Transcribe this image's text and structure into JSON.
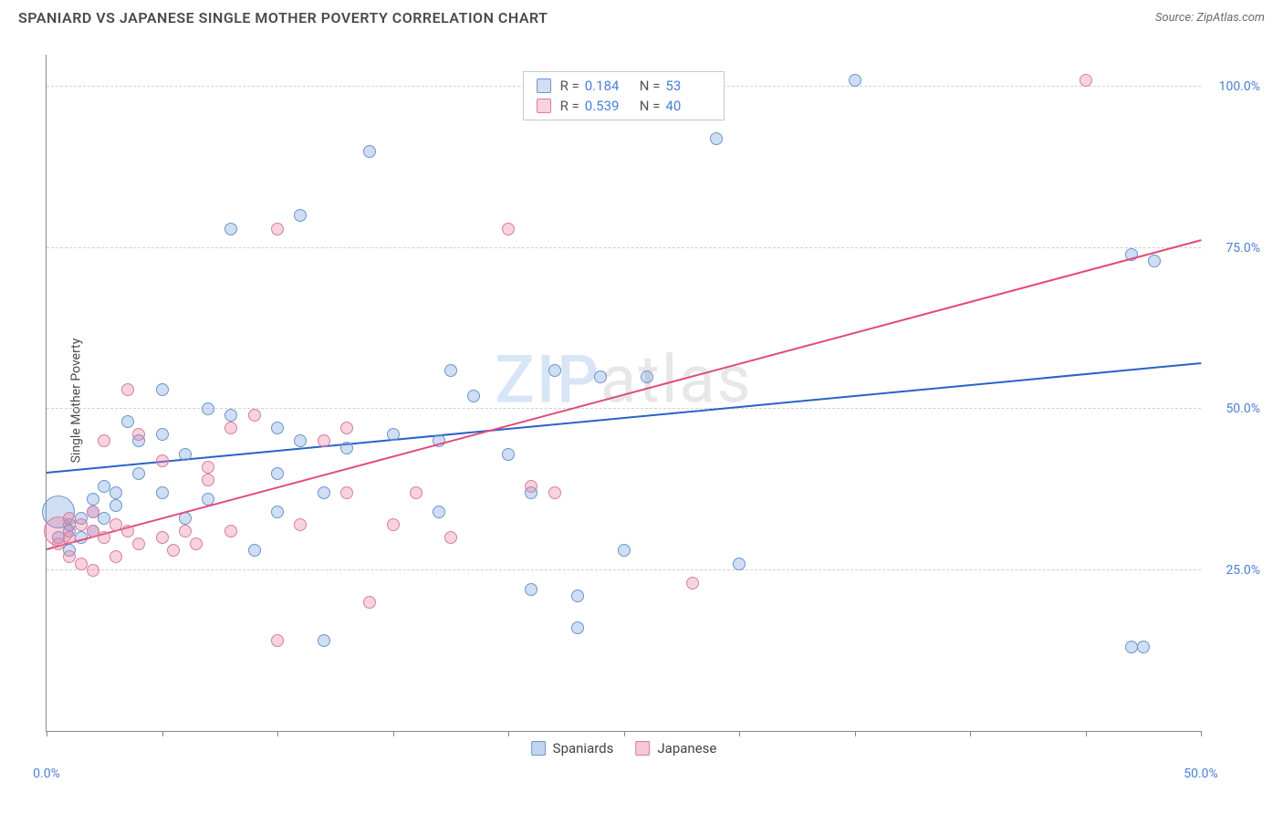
{
  "title": "SPANIARD VS JAPANESE SINGLE MOTHER POVERTY CORRELATION CHART",
  "source_label": "Source: ZipAtlas.com",
  "ylabel": "Single Mother Poverty",
  "watermark": {
    "part1": "ZIP",
    "part2": "atlas"
  },
  "chart": {
    "type": "scatter",
    "xlim": [
      0,
      50
    ],
    "ylim": [
      0,
      105
    ],
    "xtick_positions": [
      0,
      5,
      10,
      15,
      20,
      25,
      30,
      35,
      40,
      45,
      50
    ],
    "xtick_labels": {
      "0": "0.0%",
      "50": "50.0%"
    },
    "ytick_positions": [
      25,
      50,
      75,
      100
    ],
    "ytick_labels": [
      "25.0%",
      "50.0%",
      "75.0%",
      "100.0%"
    ],
    "grid_color": "#d0d0d0",
    "axis_color": "#888888",
    "background_color": "#ffffff",
    "marker_radius": 7,
    "marker_stroke_width": 1.2,
    "series": [
      {
        "name": "Spaniards",
        "fill": "rgba(120,160,220,0.35)",
        "stroke": "#6a95d0",
        "r_value": "0.184",
        "n_value": "53",
        "trend": {
          "x1": 0,
          "y1": 40,
          "x2": 50,
          "y2": 57,
          "color": "#2a62c8",
          "width": 2
        },
        "points": [
          [
            0.5,
            30
          ],
          [
            0.5,
            34,
            18
          ],
          [
            1,
            28
          ],
          [
            1,
            31
          ],
          [
            1,
            32
          ],
          [
            1.5,
            30
          ],
          [
            1.5,
            33
          ],
          [
            2,
            31
          ],
          [
            2,
            34
          ],
          [
            2,
            36
          ],
          [
            2.5,
            33
          ],
          [
            2.5,
            38
          ],
          [
            3,
            35
          ],
          [
            3,
            37
          ],
          [
            3.5,
            48
          ],
          [
            4,
            40
          ],
          [
            4,
            45
          ],
          [
            5,
            37
          ],
          [
            5,
            46
          ],
          [
            5,
            53
          ],
          [
            6,
            33
          ],
          [
            6,
            43
          ],
          [
            7,
            36
          ],
          [
            7,
            50
          ],
          [
            8,
            49
          ],
          [
            8,
            78
          ],
          [
            9,
            28
          ],
          [
            10,
            34
          ],
          [
            10,
            40
          ],
          [
            10,
            47
          ],
          [
            11,
            45
          ],
          [
            11,
            80
          ],
          [
            12,
            14
          ],
          [
            12,
            37
          ],
          [
            13,
            44
          ],
          [
            14,
            90
          ],
          [
            15,
            46
          ],
          [
            17,
            34
          ],
          [
            17,
            45
          ],
          [
            17.5,
            56
          ],
          [
            18.5,
            52
          ],
          [
            20,
            43
          ],
          [
            21,
            22
          ],
          [
            21,
            37
          ],
          [
            22,
            56
          ],
          [
            23,
            16
          ],
          [
            23,
            21
          ],
          [
            24,
            55
          ],
          [
            25,
            28
          ],
          [
            26,
            55
          ],
          [
            29,
            92
          ],
          [
            30,
            26
          ],
          [
            35,
            101
          ],
          [
            47,
            13
          ],
          [
            47.5,
            13
          ],
          [
            47,
            74
          ],
          [
            48,
            73
          ]
        ]
      },
      {
        "name": "Japanese",
        "fill": "rgba(235,130,160,0.35)",
        "stroke": "#d77ea0",
        "r_value": "0.539",
        "n_value": "40",
        "trend": {
          "x1": 0,
          "y1": 28,
          "x2": 50,
          "y2": 76,
          "color": "#e24a7a",
          "width": 2
        },
        "points": [
          [
            0.5,
            29
          ],
          [
            0.5,
            31,
            16
          ],
          [
            1,
            27
          ],
          [
            1,
            30
          ],
          [
            1,
            33
          ],
          [
            1.5,
            26
          ],
          [
            1.5,
            32
          ],
          [
            2,
            25
          ],
          [
            2,
            31
          ],
          [
            2,
            34
          ],
          [
            2.5,
            30
          ],
          [
            2.5,
            45
          ],
          [
            3,
            27
          ],
          [
            3,
            32
          ],
          [
            3.5,
            31
          ],
          [
            3.5,
            53
          ],
          [
            4,
            29
          ],
          [
            4,
            46
          ],
          [
            5,
            30
          ],
          [
            5,
            42
          ],
          [
            5.5,
            28
          ],
          [
            6,
            31
          ],
          [
            6.5,
            29
          ],
          [
            7,
            39
          ],
          [
            7,
            41
          ],
          [
            8,
            31
          ],
          [
            8,
            47
          ],
          [
            9,
            49
          ],
          [
            10,
            14
          ],
          [
            10,
            78
          ],
          [
            11,
            32
          ],
          [
            12,
            45
          ],
          [
            13,
            37
          ],
          [
            13,
            47
          ],
          [
            14,
            20
          ],
          [
            15,
            32
          ],
          [
            16,
            37
          ],
          [
            17.5,
            30
          ],
          [
            20,
            78
          ],
          [
            21,
            38
          ],
          [
            22,
            37
          ],
          [
            28,
            23
          ],
          [
            45,
            101
          ]
        ]
      }
    ]
  },
  "legend_bottom": [
    {
      "label": "Spaniards",
      "fill": "rgba(120,160,220,0.45)",
      "stroke": "#6a95d0"
    },
    {
      "label": "Japanese",
      "fill": "rgba(235,130,160,0.45)",
      "stroke": "#d77ea0"
    }
  ]
}
